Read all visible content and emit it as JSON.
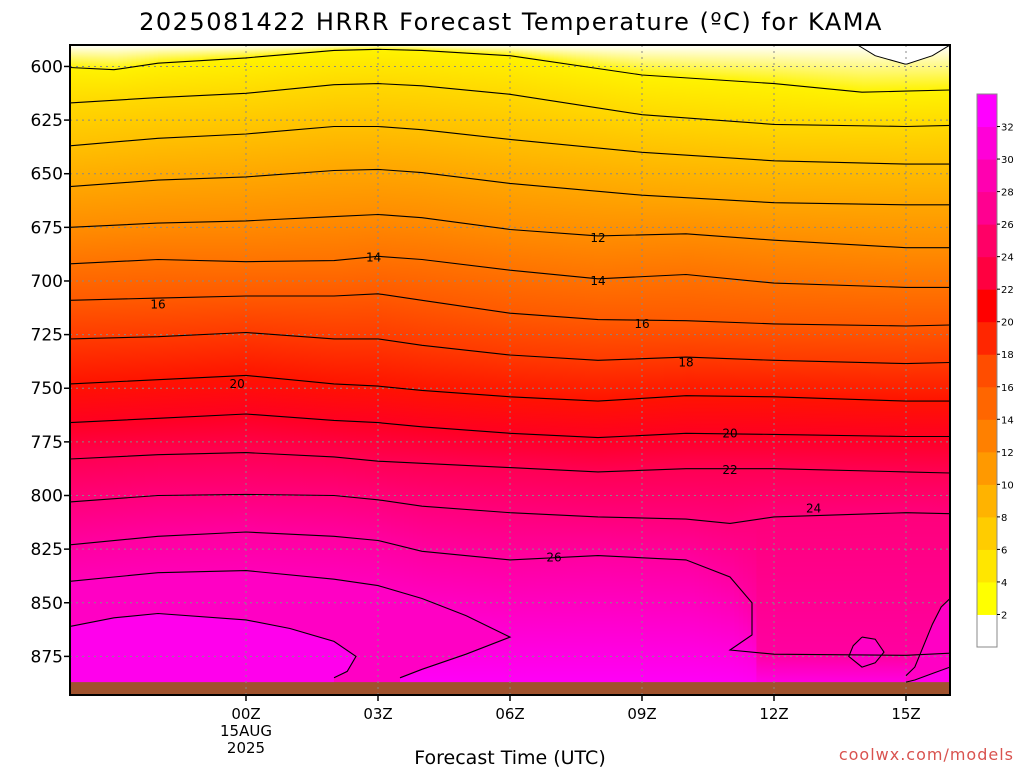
{
  "chart_data": {
    "type": "heatmap",
    "title": "2025081422 HRRR Forecast Temperature (ºC) for KAMA",
    "xlabel": "Forecast Time (UTC)",
    "x_hours": [
      -4,
      0,
      3,
      6,
      9,
      12,
      15,
      16
    ],
    "x_ticks": [
      {
        "hour": 0,
        "lines": [
          "00Z",
          "15AUG",
          "2025"
        ]
      },
      {
        "hour": 3,
        "lines": [
          "03Z"
        ]
      },
      {
        "hour": 6,
        "lines": [
          "06Z"
        ]
      },
      {
        "hour": 9,
        "lines": [
          "09Z"
        ]
      },
      {
        "hour": 12,
        "lines": [
          "12Z"
        ]
      },
      {
        "hour": 15,
        "lines": [
          "15Z"
        ]
      }
    ],
    "y_ticks": [
      600,
      625,
      650,
      675,
      700,
      725,
      750,
      775,
      800,
      825,
      850,
      875
    ],
    "ylim": [
      590,
      893
    ],
    "ground_color": "#a0522d",
    "colorbar": {
      "labels": [
        2,
        4,
        6,
        8,
        10,
        12,
        14,
        16,
        18,
        20,
        22,
        24,
        26,
        28,
        30,
        32
      ],
      "colors": [
        "#ffffff",
        "#ffff00",
        "#ffe600",
        "#ffcc00",
        "#ffb300",
        "#ff9900",
        "#ff8000",
        "#ff6600",
        "#ff4d00",
        "#ff2600",
        "#ff0000",
        "#ff0040",
        "#ff0066",
        "#ff0090",
        "#ff00b0",
        "#ff00d8",
        "#ff00ff"
      ]
    },
    "isotherms": [
      {
        "temp": 2,
        "points": [
          [
            -4,
            600.5
          ],
          [
            -3,
            601.5
          ],
          [
            -2,
            598.5
          ],
          [
            0,
            596
          ],
          [
            2,
            592.5
          ],
          [
            3,
            592
          ],
          [
            4,
            592.5
          ],
          [
            6,
            595
          ],
          [
            9,
            604
          ],
          [
            12,
            608
          ],
          [
            14,
            612
          ],
          [
            15,
            611.5
          ],
          [
            16,
            611
          ]
        ]
      },
      {
        "temp": 4,
        "points": [
          [
            -4,
            617
          ],
          [
            -2,
            614.5
          ],
          [
            0,
            612.5
          ],
          [
            2,
            608.5
          ],
          [
            3,
            608
          ],
          [
            4,
            609
          ],
          [
            6,
            613
          ],
          [
            9,
            622.5
          ],
          [
            12,
            627
          ],
          [
            15,
            628
          ],
          [
            16,
            627.5
          ]
        ]
      },
      {
        "temp": 6,
        "points": [
          [
            -4,
            637
          ],
          [
            -2,
            633.5
          ],
          [
            0,
            631.5
          ],
          [
            2,
            628
          ],
          [
            3,
            628
          ],
          [
            4,
            629.5
          ],
          [
            6,
            634
          ],
          [
            9,
            640
          ],
          [
            12,
            644
          ],
          [
            15,
            645.5
          ],
          [
            16,
            645.5
          ]
        ]
      },
      {
        "temp": 8,
        "points": [
          [
            -4,
            656
          ],
          [
            -2,
            653
          ],
          [
            0,
            651.5
          ],
          [
            2,
            648.5
          ],
          [
            3,
            648
          ],
          [
            4,
            649.5
          ],
          [
            6,
            654.5
          ],
          [
            9,
            660
          ],
          [
            12,
            663.5
          ],
          [
            15,
            664.5
          ],
          [
            16,
            664.5
          ]
        ]
      },
      {
        "temp": 10,
        "points": [
          [
            -4,
            675
          ],
          [
            -2,
            673
          ],
          [
            0,
            672
          ],
          [
            2,
            670
          ],
          [
            3,
            669
          ],
          [
            4,
            670.5
          ],
          [
            6,
            676
          ],
          [
            8,
            679
          ],
          [
            10,
            678
          ],
          [
            12,
            681
          ],
          [
            15,
            684.5
          ],
          [
            16,
            684.5
          ]
        ]
      },
      {
        "temp": 12,
        "points": [
          [
            -4,
            692
          ],
          [
            -2,
            690
          ],
          [
            0,
            691
          ],
          [
            2,
            690.5
          ],
          [
            3,
            688.5
          ],
          [
            4,
            690
          ],
          [
            6,
            695
          ],
          [
            8,
            699
          ],
          [
            10,
            697
          ],
          [
            12,
            701
          ],
          [
            15,
            703
          ],
          [
            16,
            703
          ]
        ]
      },
      {
        "temp": 14,
        "points": [
          [
            -4,
            709
          ],
          [
            -2,
            708
          ],
          [
            0,
            707
          ],
          [
            2,
            707
          ],
          [
            3,
            706
          ],
          [
            4,
            709
          ],
          [
            6,
            715
          ],
          [
            8,
            718
          ],
          [
            10,
            718.5
          ],
          [
            12,
            720
          ],
          [
            15,
            721
          ],
          [
            16,
            720.5
          ]
        ]
      },
      {
        "temp": 16,
        "points": [
          [
            -4,
            727
          ],
          [
            -2,
            726
          ],
          [
            0,
            724
          ],
          [
            2,
            727
          ],
          [
            3,
            727
          ],
          [
            4,
            730
          ],
          [
            6,
            734.5
          ],
          [
            8,
            737
          ],
          [
            10,
            735.5
          ],
          [
            12,
            737
          ],
          [
            15,
            738.5
          ],
          [
            16,
            738
          ]
        ]
      },
      {
        "temp": 18,
        "points": [
          [
            -4,
            748
          ],
          [
            -2,
            746
          ],
          [
            0,
            744
          ],
          [
            2,
            748
          ],
          [
            3,
            749
          ],
          [
            4,
            751
          ],
          [
            6,
            754
          ],
          [
            8,
            756
          ],
          [
            10,
            753.5
          ],
          [
            12,
            754
          ],
          [
            15,
            756
          ],
          [
            16,
            756
          ]
        ]
      },
      {
        "temp": 20,
        "points": [
          [
            -4,
            766
          ],
          [
            -2,
            764
          ],
          [
            0,
            762
          ],
          [
            2,
            765
          ],
          [
            3,
            766
          ],
          [
            4,
            768
          ],
          [
            6,
            771
          ],
          [
            8,
            773
          ],
          [
            10,
            771
          ],
          [
            12,
            771.5
          ],
          [
            15,
            772.5
          ],
          [
            16,
            772.5
          ]
        ]
      },
      {
        "temp": 22,
        "points": [
          [
            -4,
            783
          ],
          [
            -2,
            781
          ],
          [
            0,
            780
          ],
          [
            2,
            782
          ],
          [
            3,
            784
          ],
          [
            4,
            785
          ],
          [
            6,
            787
          ],
          [
            8,
            789
          ],
          [
            10,
            787.5
          ],
          [
            12,
            787.5
          ],
          [
            15,
            789
          ],
          [
            16,
            789.5
          ]
        ]
      },
      {
        "temp": 24,
        "points": [
          [
            -4,
            803
          ],
          [
            -2,
            800
          ],
          [
            0,
            799.5
          ],
          [
            2,
            800
          ],
          [
            3,
            802
          ],
          [
            4,
            805
          ],
          [
            6,
            808
          ],
          [
            8,
            810
          ],
          [
            10,
            811
          ],
          [
            11,
            813
          ],
          [
            12,
            810
          ],
          [
            15,
            808
          ],
          [
            16,
            808.5
          ]
        ]
      },
      {
        "temp": 26,
        "points": [
          [
            -4,
            823
          ],
          [
            -2,
            819
          ],
          [
            0,
            817
          ],
          [
            2,
            819
          ],
          [
            3,
            821
          ],
          [
            4,
            826
          ],
          [
            6,
            830
          ],
          [
            8,
            828
          ],
          [
            10,
            830
          ],
          [
            11,
            838
          ],
          [
            11.5,
            850
          ],
          [
            11.5,
            865
          ],
          [
            11,
            872
          ],
          [
            12,
            874
          ],
          [
            15,
            874.5
          ],
          [
            16,
            873.5
          ]
        ]
      },
      {
        "temp": 28,
        "points": [
          [
            -4,
            840
          ],
          [
            -2,
            836
          ],
          [
            0,
            835
          ],
          [
            2,
            839
          ],
          [
            3,
            842
          ],
          [
            4,
            848
          ],
          [
            5,
            856
          ],
          [
            6,
            866
          ],
          [
            5,
            874
          ],
          [
            4,
            881
          ],
          [
            3.5,
            885
          ]
        ]
      },
      {
        "temp": 28,
        "points": [
          [
            14,
            866
          ],
          [
            13.8,
            870
          ],
          [
            13.7,
            875
          ],
          [
            14,
            880
          ],
          [
            14.3,
            878
          ],
          [
            14.5,
            873
          ],
          [
            14.3,
            867
          ],
          [
            14,
            866
          ]
        ]
      },
      {
        "temp": 28,
        "points": [
          [
            16,
            848
          ],
          [
            15.8,
            852
          ],
          [
            15.6,
            860
          ],
          [
            15.4,
            870
          ],
          [
            15.2,
            880
          ],
          [
            15,
            884
          ]
        ]
      },
      {
        "temp": 30,
        "points": [
          [
            -4,
            861
          ],
          [
            -3,
            857
          ],
          [
            -2,
            855
          ],
          [
            0,
            858
          ],
          [
            1,
            862
          ],
          [
            2,
            868
          ],
          [
            2.5,
            875
          ],
          [
            2.3,
            882
          ],
          [
            2,
            885
          ]
        ]
      },
      {
        "temp": 30,
        "points": [
          [
            16,
            880
          ],
          [
            15.6,
            883
          ],
          [
            15.2,
            886
          ],
          [
            15,
            887
          ]
        ]
      }
    ],
    "contour_labels": [
      {
        "text": "12",
        "x": 8.0,
        "p": 680
      },
      {
        "text": "14",
        "x": 2.9,
        "p": 689
      },
      {
        "text": "14",
        "x": 8.0,
        "p": 700
      },
      {
        "text": "16",
        "x": -2.0,
        "p": 711
      },
      {
        "text": "16",
        "x": 9.0,
        "p": 720
      },
      {
        "text": "18",
        "x": 10.0,
        "p": 738
      },
      {
        "text": "20",
        "x": -0.2,
        "p": 748
      },
      {
        "text": "20",
        "x": 11.0,
        "p": 771
      },
      {
        "text": "22",
        "x": 11.0,
        "p": 788
      },
      {
        "text": "24",
        "x": 12.9,
        "p": 806
      },
      {
        "text": "26",
        "x": 7.0,
        "p": 829
      }
    ]
  },
  "credit": "coolwx.com/models"
}
